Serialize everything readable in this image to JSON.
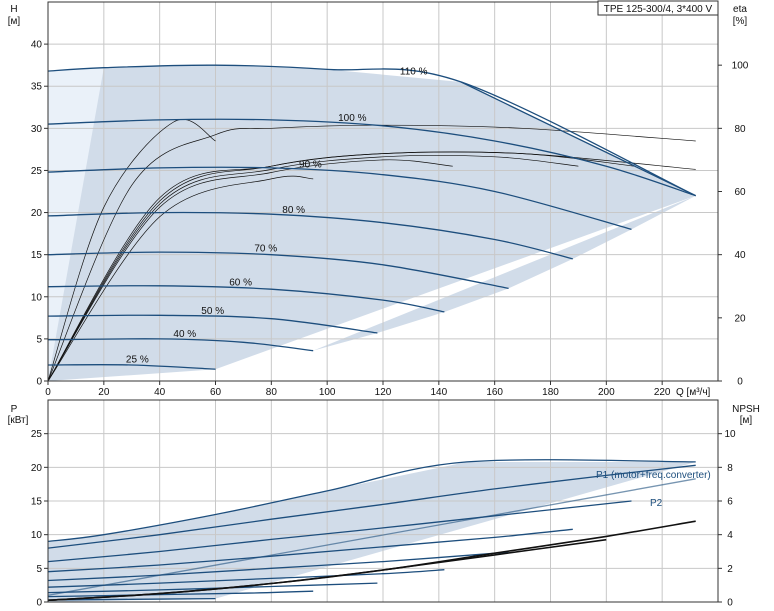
{
  "chart_data": [
    {
      "type": "line",
      "title": "TPE 125-300/4, 3*400 V",
      "xlabel": "Q [м³/ч]",
      "ylabel": "H",
      "ylabel_unit": "[м]",
      "y2label": "eta",
      "y2label_unit": "[%]",
      "xlim": [
        0,
        240
      ],
      "ylim": [
        0,
        45
      ],
      "y2lim": [
        0,
        120
      ],
      "x_ticks": [
        "0",
        "20",
        "40",
        "60",
        "80",
        "100",
        "120",
        "140",
        "160",
        "180",
        "200",
        "220"
      ],
      "y_ticks": [
        "0",
        "5",
        "10",
        "15",
        "20",
        "25",
        "30",
        "35",
        "40"
      ],
      "y2_ticks": [
        "0",
        "20",
        "40",
        "60",
        "80",
        "100"
      ],
      "grid": true,
      "series": [
        {
          "name": "110 %",
          "x": [
            0,
            20,
            60,
            100,
            148,
            232
          ],
          "y": [
            36.8,
            37.2,
            37.5,
            37.0,
            35.5,
            22.0
          ]
        },
        {
          "name": "100 %",
          "x": [
            0,
            40,
            80,
            120,
            160,
            200,
            232
          ],
          "y": [
            30.5,
            31.0,
            31.0,
            30.3,
            28.5,
            25.5,
            22.0
          ]
        },
        {
          "name": "90 %",
          "x": [
            0,
            40,
            80,
            120,
            160,
            209
          ],
          "y": [
            24.8,
            25.3,
            25.3,
            24.5,
            22.5,
            18.0
          ]
        },
        {
          "name": "80 %",
          "x": [
            0,
            40,
            80,
            120,
            160,
            188
          ],
          "y": [
            19.6,
            20.0,
            19.8,
            18.8,
            16.8,
            14.5
          ]
        },
        {
          "name": "70 %",
          "x": [
            0,
            40,
            80,
            120,
            165
          ],
          "y": [
            15.0,
            15.3,
            15.0,
            13.8,
            11.0
          ]
        },
        {
          "name": "60 %",
          "x": [
            0,
            40,
            80,
            120,
            142
          ],
          "y": [
            11.2,
            11.3,
            10.9,
            9.6,
            8.2
          ]
        },
        {
          "name": "50 %",
          "x": [
            0,
            40,
            80,
            118
          ],
          "y": [
            7.7,
            7.8,
            7.4,
            5.7
          ]
        },
        {
          "name": "40 %",
          "x": [
            0,
            40,
            70,
            95
          ],
          "y": [
            4.9,
            5.0,
            4.6,
            3.6
          ]
        },
        {
          "name": "25 %",
          "x": [
            0,
            30,
            60
          ],
          "y": [
            1.9,
            1.9,
            1.4
          ]
        }
      ],
      "eta_series": [
        {
          "x": [
            0,
            40,
            80,
            120,
            170,
            232
          ],
          "y": [
            0,
            58,
            68,
            72,
            72,
            67
          ]
        },
        {
          "x": [
            0,
            40,
            80,
            120,
            170,
            210
          ],
          "y": [
            0,
            57,
            68,
            72,
            72,
            68
          ]
        },
        {
          "x": [
            0,
            40,
            80,
            120,
            160,
            190
          ],
          "y": [
            0,
            56,
            67,
            71,
            71,
            68
          ]
        },
        {
          "x": [
            0,
            40,
            80,
            120,
            145
          ],
          "y": [
            0,
            55,
            66,
            70,
            68
          ]
        },
        {
          "x": [
            0,
            40,
            80,
            95
          ],
          "y": [
            0,
            52,
            64,
            64
          ]
        },
        {
          "x": [
            0,
            30,
            60,
            80,
            120,
            170,
            232
          ],
          "y": [
            0,
            62,
            78,
            80,
            81,
            80,
            76
          ]
        },
        {
          "x": [
            0,
            20,
            45,
            60
          ],
          "y": [
            0,
            55,
            82,
            76
          ]
        }
      ]
    },
    {
      "type": "line",
      "ylabel": "P",
      "ylabel_unit": "[кВт]",
      "y2label": "NPSH",
      "y2label_unit": "[м]",
      "xlim": [
        0,
        240
      ],
      "ylim": [
        0,
        30
      ],
      "y2lim": [
        0,
        12
      ],
      "y_ticks": [
        "0",
        "5",
        "10",
        "15",
        "20",
        "25"
      ],
      "y2_ticks": [
        "0",
        "2",
        "4",
        "6",
        "8",
        "10"
      ],
      "grid": true,
      "annotations": [
        "P1 (motor+freq.converter)",
        "P2"
      ],
      "series": [
        {
          "name": "P1 (motor+freq.converter)",
          "x": [
            0,
            20,
            60,
            100,
            150,
            232
          ],
          "y": [
            9.0,
            10.0,
            13.0,
            16.5,
            20.8,
            20.8
          ]
        },
        {
          "name": "P2",
          "x": [
            0,
            232
          ],
          "y": [
            1.0,
            18.3
          ]
        }
      ],
      "power_curves": [
        {
          "x": [
            0,
            40,
            80,
            120,
            160,
            200,
            232
          ],
          "y": [
            8.0,
            10.0,
            12.3,
            14.5,
            16.8,
            18.8,
            20.3
          ]
        },
        {
          "x": [
            0,
            40,
            80,
            120,
            160,
            209
          ],
          "y": [
            6.0,
            7.5,
            9.3,
            11.0,
            12.8,
            15.0
          ]
        },
        {
          "x": [
            0,
            40,
            80,
            120,
            160,
            188
          ],
          "y": [
            4.5,
            5.5,
            6.8,
            8.2,
            9.6,
            10.8
          ]
        },
        {
          "x": [
            0,
            40,
            80,
            120,
            165
          ],
          "y": [
            3.2,
            4.0,
            5.0,
            6.0,
            7.4
          ]
        },
        {
          "x": [
            0,
            40,
            80,
            120,
            142
          ],
          "y": [
            2.2,
            2.8,
            3.5,
            4.2,
            4.8
          ]
        },
        {
          "x": [
            0,
            40,
            80,
            118
          ],
          "y": [
            1.4,
            1.8,
            2.3,
            2.8
          ]
        },
        {
          "x": [
            0,
            40,
            70,
            95
          ],
          "y": [
            0.8,
            1.1,
            1.3,
            1.6
          ]
        },
        {
          "x": [
            0,
            30,
            60
          ],
          "y": [
            0.3,
            0.4,
            0.5
          ]
        }
      ],
      "npsh_series": [
        {
          "x": [
            0,
            40,
            80,
            120,
            160,
            200,
            232
          ],
          "y": [
            0.1,
            0.5,
            1.1,
            1.9,
            2.9,
            3.9,
            4.8
          ]
        },
        {
          "x": [
            0,
            40,
            80,
            120,
            160,
            200
          ],
          "y": [
            0.1,
            0.5,
            1.1,
            1.9,
            2.8,
            3.7
          ]
        }
      ]
    }
  ],
  "colors": {
    "accent": "#1d4e7d",
    "area_fill": "#c9d6e5",
    "grid": "#c8c8c8",
    "text": "#111111"
  }
}
